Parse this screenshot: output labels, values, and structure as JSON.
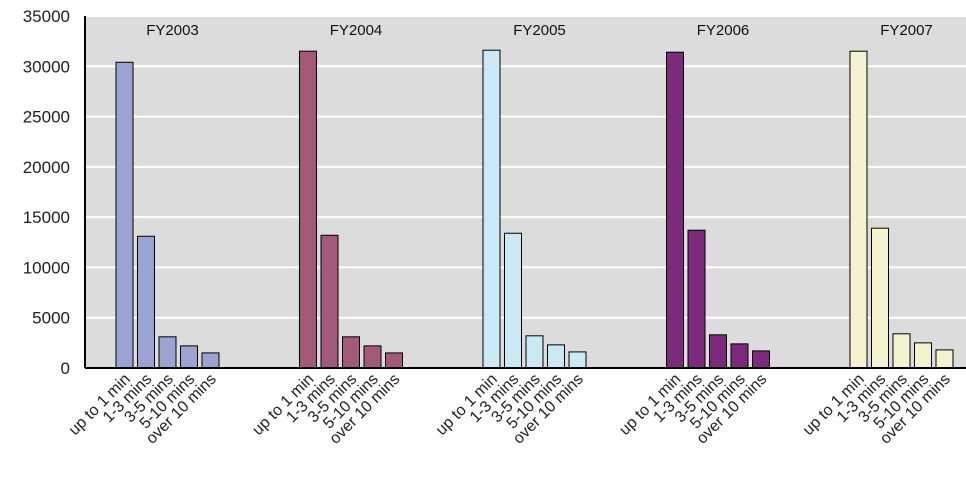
{
  "chart_data": {
    "type": "bar",
    "title": "",
    "xlabel": "",
    "ylabel": "",
    "ylim": [
      0,
      35000
    ],
    "yticks": [
      0,
      5000,
      10000,
      15000,
      20000,
      25000,
      30000,
      35000
    ],
    "grid": true,
    "categories": [
      "up to 1 min",
      "1-3 mins",
      "3-5 mins",
      "5-10 mins",
      "over 10 mins"
    ],
    "series": [
      {
        "name": "FY2003",
        "color": "#9ba3d2",
        "values": [
          30400,
          13100,
          3100,
          2200,
          1500
        ]
      },
      {
        "name": "FY2004",
        "color": "#a35a7a",
        "values": [
          31500,
          13200,
          3100,
          2200,
          1500
        ]
      },
      {
        "name": "FY2005",
        "color": "#cbe9f4",
        "values": [
          31600,
          13400,
          3200,
          2300,
          1600
        ]
      },
      {
        "name": "FY2006",
        "color": "#7b2a7c",
        "values": [
          31400,
          13700,
          3300,
          2400,
          1700
        ]
      },
      {
        "name": "FY2007",
        "color": "#f5f3cf",
        "values": [
          31500,
          13900,
          3400,
          2500,
          1800
        ]
      }
    ]
  }
}
